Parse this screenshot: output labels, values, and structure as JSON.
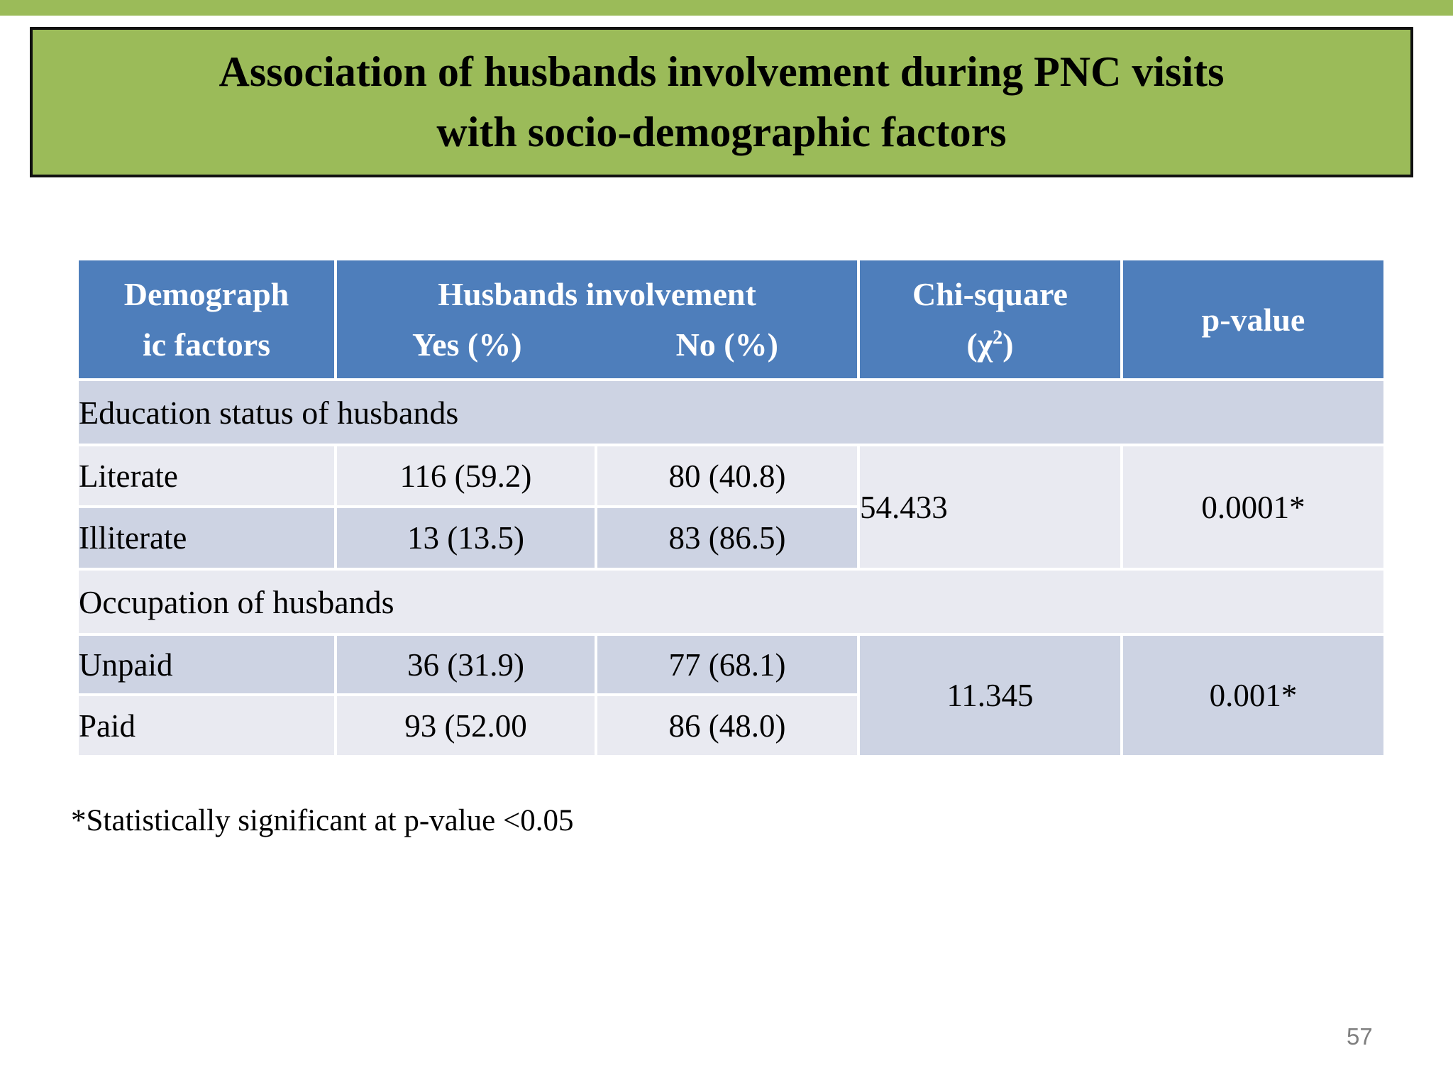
{
  "title": {
    "line1": "Association of husbands involvement during PNC visits",
    "line2": "with socio-demographic factors"
  },
  "table": {
    "header": {
      "col1_line1": "Demograph",
      "col1_line2": "ic factors",
      "involvement": "Husbands involvement",
      "yes": "Yes (%)",
      "no": "No (%)",
      "chi_line1": "Chi-square",
      "chi_open": "(χ",
      "chi_sup": "2",
      "chi_close": ")",
      "pvalue": "p-value"
    },
    "sections": [
      {
        "label": "Education status of husbands",
        "rows": [
          {
            "factor": "Literate",
            "yes": "116 (59.2)",
            "no": "80 (40.8)"
          },
          {
            "factor": "Illiterate",
            "yes": "13 (13.5)",
            "no": "83 (86.5)"
          }
        ],
        "chi": "54.433",
        "p": "0.0001*"
      },
      {
        "label": "Occupation of husbands",
        "rows": [
          {
            "factor": "Unpaid",
            "yes": "36 (31.9)",
            "no": "77 (68.1)"
          },
          {
            "factor": "Paid",
            "yes": "93 (52.00",
            "no": "86 (48.0)"
          }
        ],
        "chi": "11.345",
        "p": "0.001*"
      }
    ]
  },
  "footnote": "*Statistically significant at p-value <0.05",
  "page_number": "57",
  "colors": {
    "title_green": "#9bbb59",
    "title_border": "#111111",
    "header_blue": "#4e7ebb",
    "band_dark": "#cdd3e3",
    "band_light": "#e9eaf1",
    "page_number_gray": "#7f7f7f"
  }
}
